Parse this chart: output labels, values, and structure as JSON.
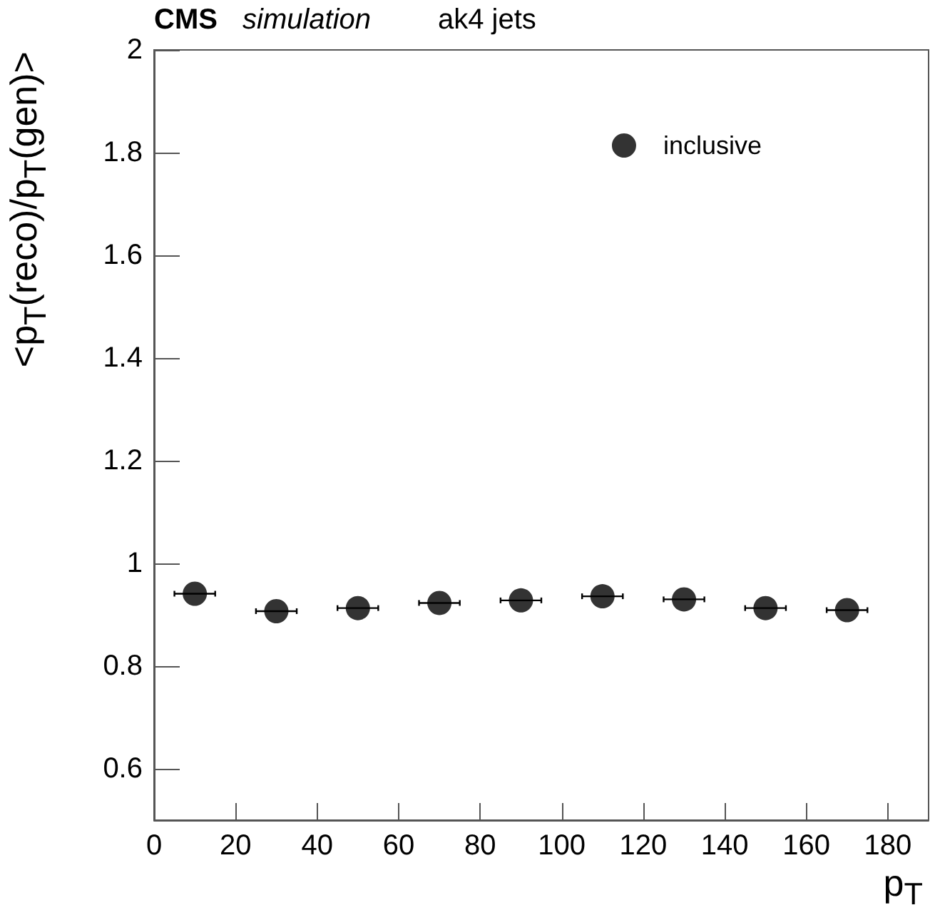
{
  "chart_data": {
    "type": "scatter",
    "title": "CMS",
    "subtitle": "simulation",
    "annotations": [
      "ak4 jets"
    ],
    "xlabel": "p$_{T}$",
    "ylabel": "<p$_{T}$(reco)/p$_{T}$(gen)>",
    "x": [
      10,
      30,
      50,
      70,
      90,
      110,
      130,
      150,
      170
    ],
    "series": [
      {
        "name": "inclusive",
        "color": "#000000",
        "values": [
          0.941,
          0.907,
          0.913,
          0.923,
          0.928,
          0.936,
          0.93,
          0.913,
          0.909
        ],
        "xerrors": [
          5,
          5,
          5,
          5,
          5,
          5,
          5,
          5,
          5
        ]
      }
    ],
    "xlim": [
      0,
      190
    ],
    "xticks": [
      0,
      20,
      40,
      60,
      80,
      100,
      120,
      140,
      160,
      180
    ],
    "ylim": [
      0.5,
      2
    ],
    "yticks": [
      0.6,
      0.8,
      1,
      1.2,
      1.4,
      1.6,
      1.8,
      2
    ],
    "marker": "circle",
    "legend": "top right",
    "grid": false
  }
}
